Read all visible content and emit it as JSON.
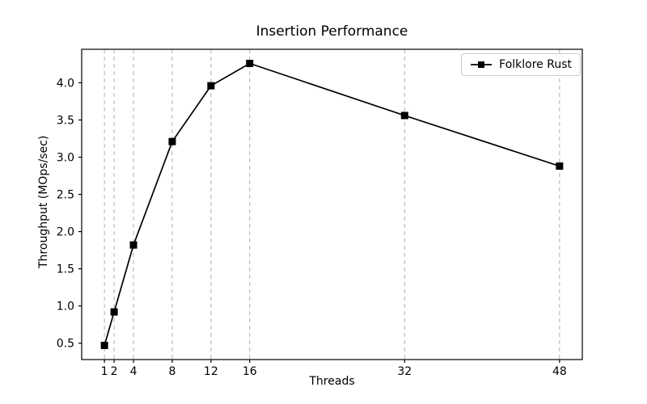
{
  "chart_data": {
    "type": "line",
    "title": "Insertion Performance",
    "xlabel": "Threads",
    "ylabel": "Throughput (MOps/sec)",
    "x": [
      1,
      2,
      4,
      8,
      12,
      16,
      32,
      48
    ],
    "series": [
      {
        "name": "Folklore Rust",
        "color": "#000000",
        "marker": "square",
        "values": [
          0.47,
          0.92,
          1.82,
          3.21,
          3.96,
          4.26,
          3.56,
          2.88
        ]
      }
    ],
    "xticks": [
      1,
      2,
      4,
      8,
      12,
      16,
      32,
      48
    ],
    "yticks": [
      0.5,
      1.0,
      1.5,
      2.0,
      2.5,
      3.0,
      3.5,
      4.0
    ],
    "xlim": [
      -1.35,
      50.35
    ],
    "ylim": [
      0.28,
      4.45
    ],
    "grid": "vertical-dashed",
    "grid_color": "#b0b0b0",
    "spine_color": "#000000",
    "background_color": "#ffffff",
    "legend_position": "upper right"
  }
}
